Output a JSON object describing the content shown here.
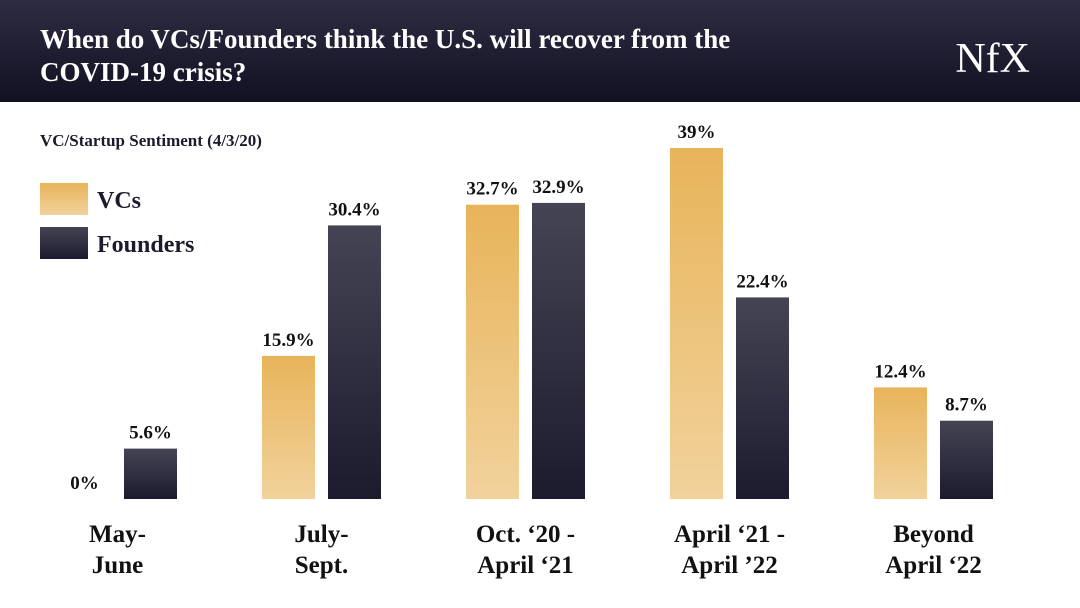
{
  "chart_data": {
    "type": "bar",
    "title": [
      "When do VCs/Founders think the U.S. will recover from the",
      "COVID-19 crisis?"
    ],
    "brand": "NfX",
    "subtitle": "VC/Startup Sentiment (4/3/20)",
    "categories": [
      [
        "May-",
        "June"
      ],
      [
        "July-",
        "Sept."
      ],
      [
        "Oct. ‘20 -",
        "April ‘21"
      ],
      [
        "April ‘21 -",
        "April ’22"
      ],
      [
        "Beyond",
        "April ‘22"
      ]
    ],
    "series": [
      {
        "name": "VCs",
        "color": "#e8b45a",
        "values": [
          0,
          15.9,
          32.7,
          39,
          12.4
        ],
        "value_labels": [
          "0%",
          "15.9%",
          "32.7%",
          "39%",
          "12.4%"
        ]
      },
      {
        "name": "Founders",
        "color": "#1c1b2e",
        "values": [
          5.6,
          30.4,
          32.9,
          22.4,
          8.7
        ],
        "value_labels": [
          "5.6%",
          "30.4%",
          "32.9%",
          "22.4%",
          "8.7%"
        ]
      }
    ]
  }
}
